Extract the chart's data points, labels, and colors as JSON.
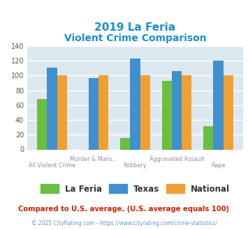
{
  "title_line1": "2019 La Feria",
  "title_line2": "Violent Crime Comparison",
  "title_color": "#1a8fd1",
  "categories": [
    "All Violent Crime",
    "Murder & Mans...",
    "Robbery",
    "Aggravated Assault",
    "Rape"
  ],
  "cat_labels_top": [
    "",
    "Murder & Mans...",
    "",
    "Aggravated Assault",
    ""
  ],
  "cat_labels_bot": [
    "All Violent Crime",
    "",
    "Robbery",
    "",
    "Rape"
  ],
  "la_feria": [
    68,
    0,
    16,
    93,
    32
  ],
  "texas": [
    111,
    97,
    123,
    106,
    120
  ],
  "national": [
    100,
    100,
    100,
    100,
    100
  ],
  "la_feria_color": "#6abf40",
  "texas_color": "#4090d0",
  "national_color": "#f0a030",
  "ylim": [
    0,
    140
  ],
  "yticks": [
    0,
    20,
    40,
    60,
    80,
    100,
    120,
    140
  ],
  "bar_width": 0.24,
  "legend_labels": [
    "La Feria",
    "Texas",
    "National"
  ],
  "note_text": "Compared to U.S. average. (U.S. average equals 100)",
  "note_color": "#cc2200",
  "footer_text": "© 2025 CityRating.com - https://www.cityrating.com/crime-statistics/",
  "footer_color": "#6699cc",
  "plot_bg_color": "#dce8f0",
  "fig_bg_color": "#ffffff",
  "grid_color": "#ffffff",
  "label_color": "#9988aa"
}
